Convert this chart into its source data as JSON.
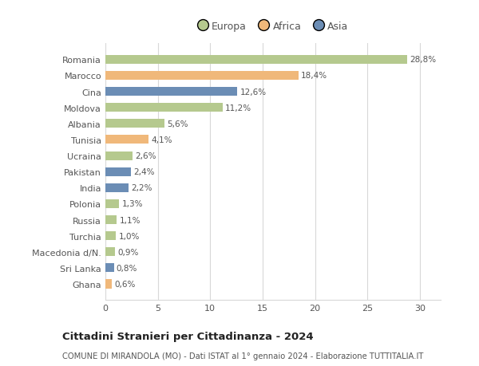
{
  "categories": [
    "Romania",
    "Marocco",
    "Cina",
    "Moldova",
    "Albania",
    "Tunisia",
    "Ucraina",
    "Pakistan",
    "India",
    "Polonia",
    "Russia",
    "Turchia",
    "Macedonia d/N.",
    "Sri Lanka",
    "Ghana"
  ],
  "values": [
    28.8,
    18.4,
    12.6,
    11.2,
    5.6,
    4.1,
    2.6,
    2.4,
    2.2,
    1.3,
    1.1,
    1.0,
    0.9,
    0.8,
    0.6
  ],
  "labels": [
    "28,8%",
    "18,4%",
    "12,6%",
    "11,2%",
    "5,6%",
    "4,1%",
    "2,6%",
    "2,4%",
    "2,2%",
    "1,3%",
    "1,1%",
    "1,0%",
    "0,9%",
    "0,8%",
    "0,6%"
  ],
  "colors": [
    "#b5c98e",
    "#f0b87a",
    "#6b8db5",
    "#b5c98e",
    "#b5c98e",
    "#f0b87a",
    "#b5c98e",
    "#6b8db5",
    "#6b8db5",
    "#b5c98e",
    "#b5c98e",
    "#b5c98e",
    "#b5c98e",
    "#6b8db5",
    "#f0b87a"
  ],
  "legend_labels": [
    "Europa",
    "Africa",
    "Asia"
  ],
  "legend_colors": [
    "#b5c98e",
    "#f0b87a",
    "#6b8db5"
  ],
  "title": "Cittadini Stranieri per Cittadinanza - 2024",
  "subtitle": "COMUNE DI MIRANDOLA (MO) - Dati ISTAT al 1° gennaio 2024 - Elaborazione TUTTITALIA.IT",
  "xlim": [
    0,
    32
  ],
  "xticks": [
    0,
    5,
    10,
    15,
    20,
    25,
    30
  ],
  "background_color": "#ffffff",
  "grid_color": "#d8d8d8"
}
